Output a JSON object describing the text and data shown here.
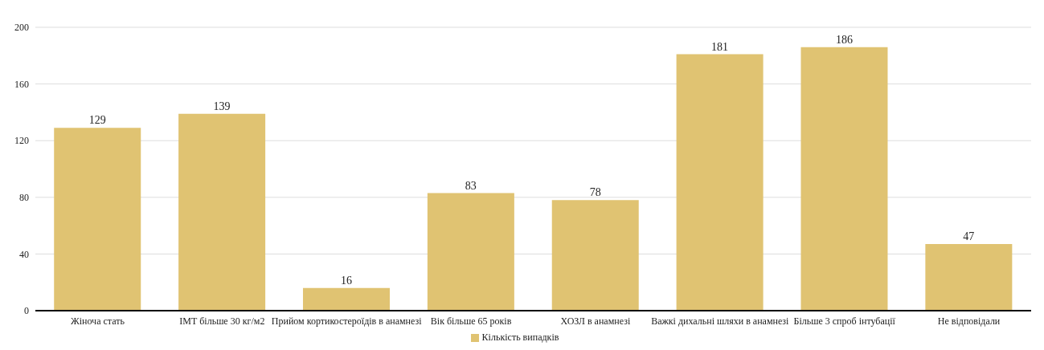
{
  "chart_data": {
    "type": "bar",
    "categories": [
      "Жіноча стать",
      "ІМТ більше 30 кг/м2",
      "Прийом кортикостероїдів в анамнезі",
      "Вік більше 65 років",
      "ХОЗЛ в анамнезі",
      "Важкі дихальні шляхи в анамнезі",
      "Більше 3 спроб інтубації",
      "Не відповідали"
    ],
    "series": [
      {
        "name": "Кількість випадків",
        "color": "#e0c372",
        "values": [
          129,
          139,
          16,
          83,
          78,
          181,
          186,
          47
        ]
      }
    ],
    "ylim": [
      0,
      200
    ],
    "yticks": [
      0,
      40,
      80,
      120,
      160,
      200
    ],
    "grid": "y",
    "legend": "bottom",
    "data_labels": true
  }
}
